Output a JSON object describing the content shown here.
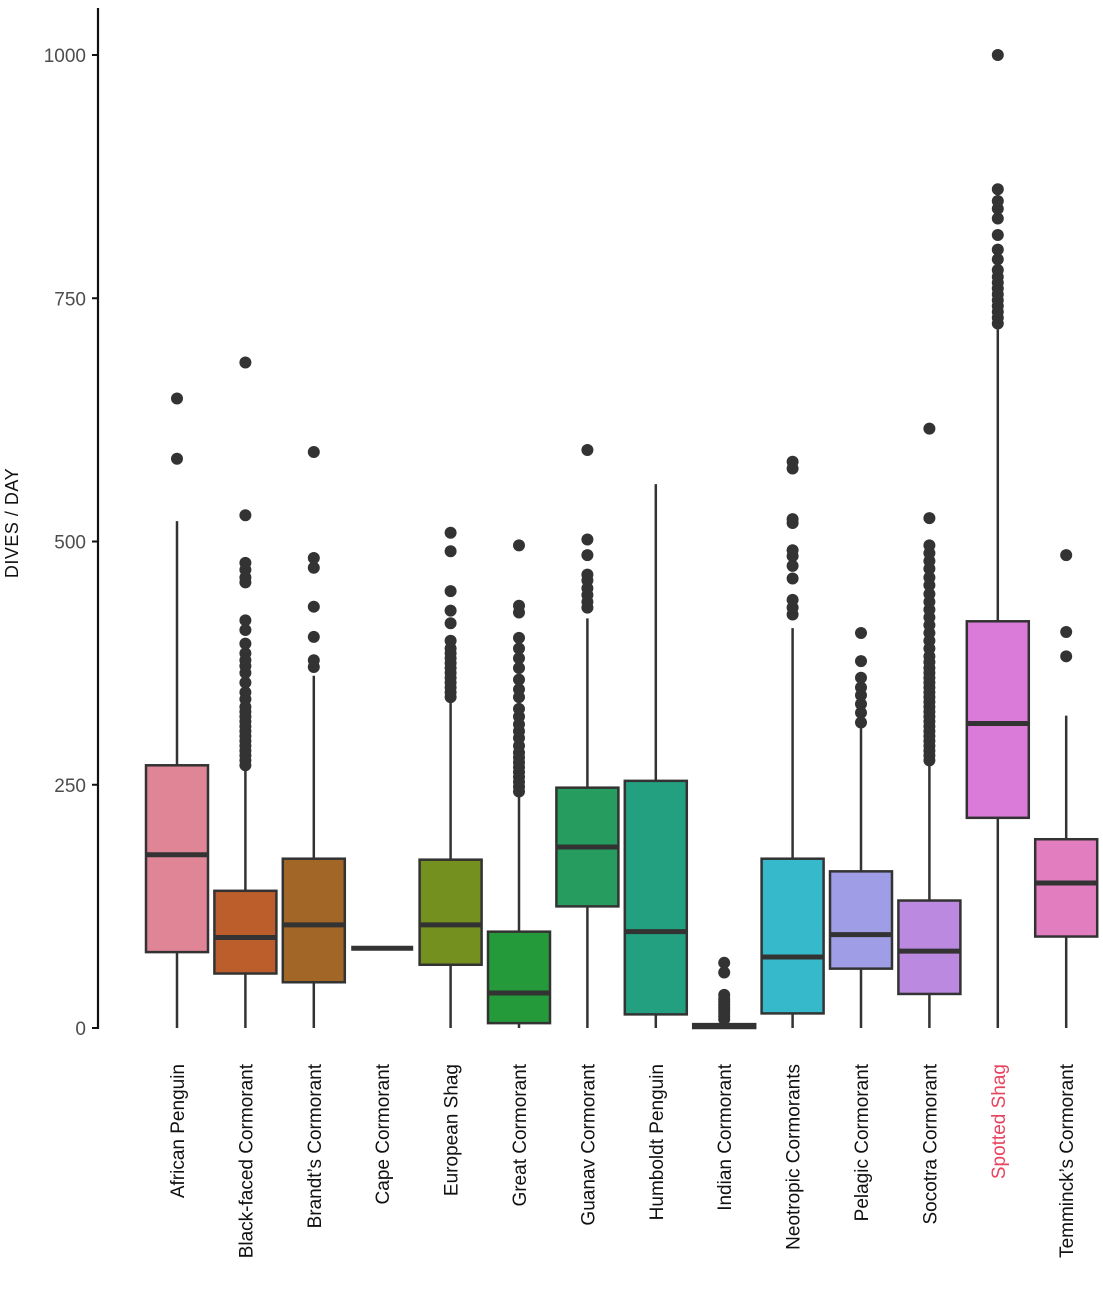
{
  "chart_data": {
    "type": "boxplot",
    "title": "",
    "xlabel": "",
    "ylabel": "DIVES / DAY",
    "ylim": [
      0,
      1000
    ],
    "yticks": [
      0,
      250,
      500,
      750,
      1000
    ],
    "ytick_labels": [
      "0",
      "250",
      "500",
      "750",
      "1000"
    ],
    "grid": false,
    "legend": "none",
    "highlight_color": "#E8435E",
    "outline_color": "#333333",
    "categories": [
      "African Penguin",
      "Black-faced Cormorant",
      "Brandt’s Cormorant",
      "Cape Cormorant",
      "European Shag",
      "Great Cormorant",
      "Guanav Cormorant",
      "Humboldt Penguin",
      "Indian Cormorant",
      "Neotropic Cormorants",
      "Pelagic Cormorant",
      "Socotra Cormorant",
      "Spotted Shag",
      "Temminck’s Cormorant"
    ],
    "series": [
      {
        "name": "African Penguin",
        "color": "#DF8595",
        "highlight": false,
        "whisker_low": 0,
        "q1": 78,
        "median": 178,
        "q3": 270,
        "whisker_high": 521,
        "outliers": [
          585,
          647
        ]
      },
      {
        "name": "Black-faced Cormorant",
        "color": "#BC5E2C",
        "highlight": false,
        "whisker_low": 0,
        "q1": 56,
        "median": 93,
        "q3": 141,
        "whisker_high": 265,
        "outliers": [
          270,
          275,
          280,
          285,
          290,
          295,
          300,
          305,
          310,
          315,
          320,
          325,
          330,
          338,
          345,
          355,
          365,
          372,
          378,
          385,
          395,
          409,
          419,
          458,
          463,
          471,
          478,
          527,
          684
        ]
      },
      {
        "name": "Brandt’s Cormorant",
        "color": "#A26627",
        "highlight": false,
        "whisker_low": 0,
        "q1": 47,
        "median": 106,
        "q3": 174,
        "whisker_high": 362,
        "outliers": [
          371,
          378,
          402,
          433,
          473,
          483,
          592
        ]
      },
      {
        "name": "Cape Cormorant",
        "color": "#8E6E1E",
        "highlight": false,
        "whisker_low": 82,
        "q1": 82,
        "median": 82,
        "q3": 82,
        "whisker_high": 82,
        "outliers": []
      },
      {
        "name": "European Shag",
        "color": "#74901F",
        "highlight": false,
        "whisker_low": 0,
        "q1": 65,
        "median": 106,
        "q3": 173,
        "whisker_high": 337,
        "outliers": [
          340,
          345,
          350,
          355,
          360,
          365,
          370,
          375,
          380,
          385,
          390,
          398,
          416,
          429,
          449,
          490,
          509
        ]
      },
      {
        "name": "Great Cormorant",
        "color": "#259A3A",
        "highlight": false,
        "whisker_low": 0,
        "q1": 5,
        "median": 36,
        "q3": 99,
        "whisker_high": 239,
        "outliers": [
          243,
          248,
          253,
          258,
          263,
          268,
          273,
          278,
          283,
          290,
          298,
          305,
          312,
          320,
          328,
          340,
          348,
          358,
          370,
          380,
          390,
          401,
          427,
          434,
          496
        ]
      },
      {
        "name": "Guanav Cormorant",
        "color": "#269D5E",
        "highlight": false,
        "whisker_low": 0,
        "q1": 125,
        "median": 186,
        "q3": 247,
        "whisker_high": 421,
        "outliers": [
          432,
          438,
          445,
          452,
          460,
          466,
          486,
          502,
          594
        ]
      },
      {
        "name": "Humboldt Penguin",
        "color": "#23A080",
        "highlight": false,
        "whisker_low": 0,
        "q1": 14,
        "median": 99,
        "q3": 254,
        "whisker_high": 559,
        "outliers": []
      },
      {
        "name": "Indian Cormorant",
        "color": "#2AAA9E",
        "highlight": false,
        "whisker_low": 0,
        "q1": 0,
        "median": 2,
        "q3": 4,
        "whisker_high": 6,
        "outliers": [
          9,
          12,
          15,
          18,
          21,
          24,
          27,
          30,
          34,
          57,
          67
        ]
      },
      {
        "name": "Neotropic Cormorants",
        "color": "#36BACB",
        "highlight": false,
        "whisker_low": 0,
        "q1": 15,
        "median": 73,
        "q3": 174,
        "whisker_high": 411,
        "outliers": [
          425,
          432,
          440,
          462,
          475,
          485,
          491,
          519,
          523,
          575,
          582
        ]
      },
      {
        "name": "Pelagic Cormorant",
        "color": "#9E9DE5",
        "highlight": false,
        "whisker_low": 0,
        "q1": 61,
        "median": 96,
        "q3": 161,
        "whisker_high": 308,
        "outliers": [
          314,
          324,
          333,
          342,
          350,
          360,
          377,
          406
        ]
      },
      {
        "name": "Socotra Cormorant",
        "color": "#BB8AE0",
        "highlight": false,
        "whisker_low": 0,
        "q1": 35,
        "median": 79,
        "q3": 131,
        "whisker_high": 270,
        "outliers": [
          275,
          280,
          285,
          290,
          295,
          300,
          305,
          310,
          315,
          320,
          325,
          330,
          335,
          340,
          345,
          350,
          355,
          360,
          365,
          370,
          376,
          382,
          390,
          398,
          406,
          414,
          422,
          430,
          438,
          446,
          455,
          463,
          472,
          480,
          488,
          496,
          524,
          616
        ]
      },
      {
        "name": "Spotted Shag",
        "color": "#DA7AD9",
        "highlight": true,
        "whisker_low": 0,
        "q1": 216,
        "median": 313,
        "q3": 418,
        "whisker_high": 718,
        "outliers": [
          724,
          730,
          736,
          742,
          748,
          754,
          760,
          766,
          772,
          779,
          790,
          800,
          815,
          832,
          842,
          850,
          862,
          1000
        ]
      },
      {
        "name": "Temminck’s Cormorant",
        "color": "#E27EC0",
        "highlight": false,
        "whisker_low": 0,
        "q1": 94,
        "median": 149,
        "q3": 194,
        "whisker_high": 321,
        "outliers": [
          382,
          407,
          486
        ]
      }
    ]
  }
}
